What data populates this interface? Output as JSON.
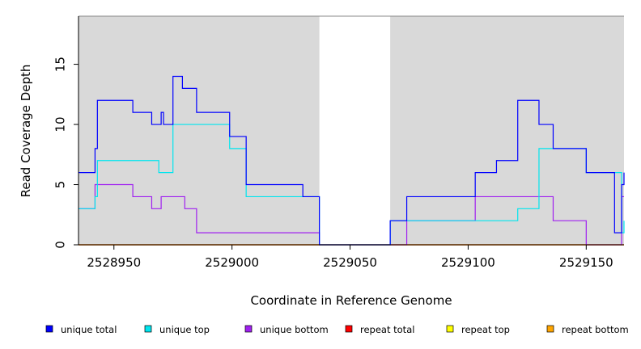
{
  "chart_data": {
    "type": "line",
    "line_style": "step",
    "xlabel": "Coordinate in Reference Genome",
    "ylabel": "Read Coverage Depth",
    "xlim": [
      2528935,
      2529166
    ],
    "ylim": [
      0,
      19
    ],
    "x_ticks": [
      2528950,
      2529000,
      2529050,
      2529100,
      2529150
    ],
    "x_tick_labels": [
      "2528950",
      "2529000",
      "2529050",
      "2529100",
      "2529150"
    ],
    "y_ticks": [
      0,
      5,
      10,
      15
    ],
    "y_tick_labels": [
      "0",
      "5",
      "10",
      "15"
    ],
    "background_color": "#d9d9d9",
    "unshaded_regions": [
      [
        2529037,
        2529067
      ]
    ],
    "grid": false,
    "legend_position": "bottom",
    "series": [
      {
        "name": "unique total",
        "color": "#0000ff",
        "x": [
          2528935,
          2528942,
          2528943,
          2528958,
          2528966,
          2528970,
          2528971,
          2528975,
          2528979,
          2528985,
          2528999,
          2529006,
          2529030,
          2529037,
          2529067,
          2529074,
          2529103,
          2529112,
          2529121,
          2529130,
          2529136,
          2529150,
          2529162,
          2529165,
          2529166
        ],
        "values": [
          6,
          8,
          12,
          11,
          10,
          11,
          10,
          14,
          13,
          11,
          9,
          5,
          4,
          0,
          2,
          4,
          6,
          7,
          12,
          10,
          8,
          6,
          1,
          5,
          6
        ]
      },
      {
        "name": "unique top",
        "color": "#00e5ee",
        "x": [
          2528935,
          2528942,
          2528943,
          2528969,
          2528975,
          2528999,
          2529006,
          2529030,
          2529037,
          2529067,
          2529074,
          2529112,
          2529121,
          2529130,
          2529150,
          2529162,
          2529165,
          2529166
        ],
        "values": [
          3,
          4,
          7,
          6,
          10,
          8,
          4,
          4,
          0,
          2,
          2,
          2,
          3,
          8,
          6,
          6,
          1,
          2
        ]
      },
      {
        "name": "unique bottom",
        "color": "#a020f0",
        "x": [
          2528935,
          2528942,
          2528958,
          2528966,
          2528970,
          2528980,
          2528985,
          2529030,
          2529037,
          2529067,
          2529074,
          2529103,
          2529136,
          2529150,
          2529165,
          2529166
        ],
        "values": [
          3,
          5,
          4,
          3,
          4,
          3,
          1,
          1,
          0,
          0,
          2,
          4,
          2,
          0,
          4,
          4
        ]
      },
      {
        "name": "repeat total",
        "color": "#ff0000",
        "x": [
          2528935,
          2529166
        ],
        "values": [
          0,
          0
        ]
      },
      {
        "name": "repeat top",
        "color": "#ffff00",
        "x": [
          2528935,
          2529166
        ],
        "values": [
          0,
          0
        ]
      },
      {
        "name": "repeat bottom",
        "color": "#ffa500",
        "x": [
          2528935,
          2529166
        ],
        "values": [
          0,
          0
        ]
      }
    ]
  }
}
